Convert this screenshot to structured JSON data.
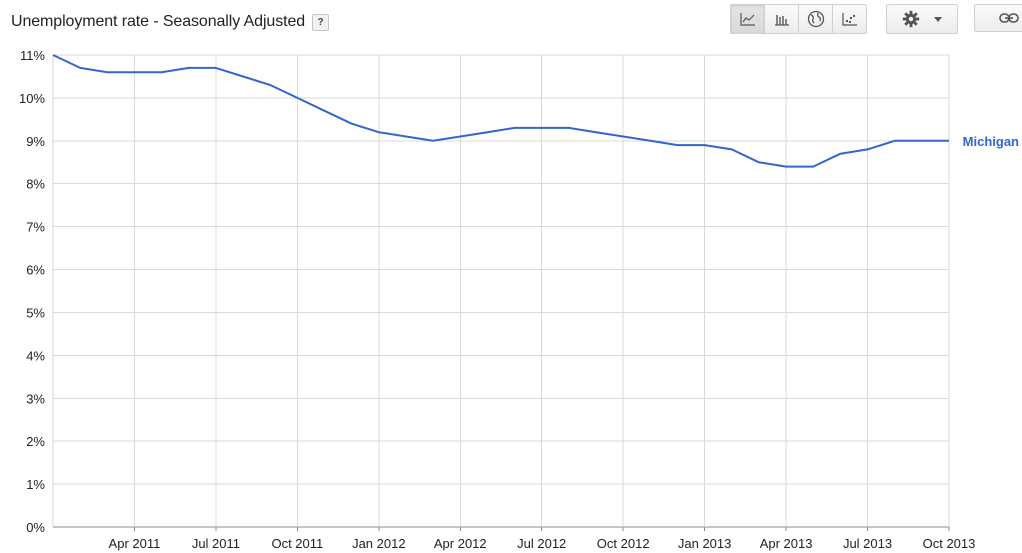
{
  "header": {
    "title": "Unemployment rate - Seasonally Adjusted",
    "help_label": "?"
  },
  "toolbar": {
    "chart_types": [
      {
        "name": "line-chart",
        "icon": "line-chart-icon",
        "active": true
      },
      {
        "name": "bar-chart",
        "icon": "bar-chart-icon",
        "active": false
      },
      {
        "name": "map",
        "icon": "globe-icon",
        "active": false
      },
      {
        "name": "scatter-chart",
        "icon": "scatter-chart-icon",
        "active": false
      }
    ],
    "settings_icon": "gear-icon",
    "link_icon": "link-icon"
  },
  "chart_data": {
    "type": "line",
    "title": "Unemployment rate - Seasonally Adjusted",
    "xlabel": "",
    "ylabel": "",
    "ylim": [
      0,
      11
    ],
    "yticks": [
      "0%",
      "1%",
      "2%",
      "3%",
      "4%",
      "5%",
      "6%",
      "7%",
      "8%",
      "9%",
      "10%",
      "11%"
    ],
    "xlim": [
      "2011-01",
      "2013-10"
    ],
    "xticks": [
      "Apr 2011",
      "Jul 2011",
      "Oct 2011",
      "Jan 2012",
      "Apr 2012",
      "Jul 2012",
      "Oct 2012",
      "Jan 2013",
      "Apr 2013",
      "Jul 2013",
      "Oct 2013"
    ],
    "grid": true,
    "legend": "line-end label, right",
    "series": [
      {
        "name": "Michigan",
        "color": "#3366cc",
        "x": [
          "2011-01",
          "2011-02",
          "2011-03",
          "2011-04",
          "2011-05",
          "2011-06",
          "2011-07",
          "2011-08",
          "2011-09",
          "2011-10",
          "2011-11",
          "2011-12",
          "2012-01",
          "2012-02",
          "2012-03",
          "2012-04",
          "2012-05",
          "2012-06",
          "2012-07",
          "2012-08",
          "2012-09",
          "2012-10",
          "2012-11",
          "2012-12",
          "2013-01",
          "2013-02",
          "2013-03",
          "2013-04",
          "2013-05",
          "2013-06",
          "2013-07",
          "2013-08",
          "2013-09",
          "2013-10"
        ],
        "values": [
          11.0,
          10.7,
          10.6,
          10.6,
          10.6,
          10.7,
          10.7,
          10.5,
          10.3,
          10.0,
          9.7,
          9.4,
          9.2,
          9.1,
          9.0,
          9.1,
          9.2,
          9.3,
          9.3,
          9.3,
          9.2,
          9.1,
          9.0,
          8.9,
          8.9,
          8.8,
          8.5,
          8.4,
          8.4,
          8.7,
          8.8,
          9.0,
          9.0,
          9.0
        ]
      }
    ]
  }
}
